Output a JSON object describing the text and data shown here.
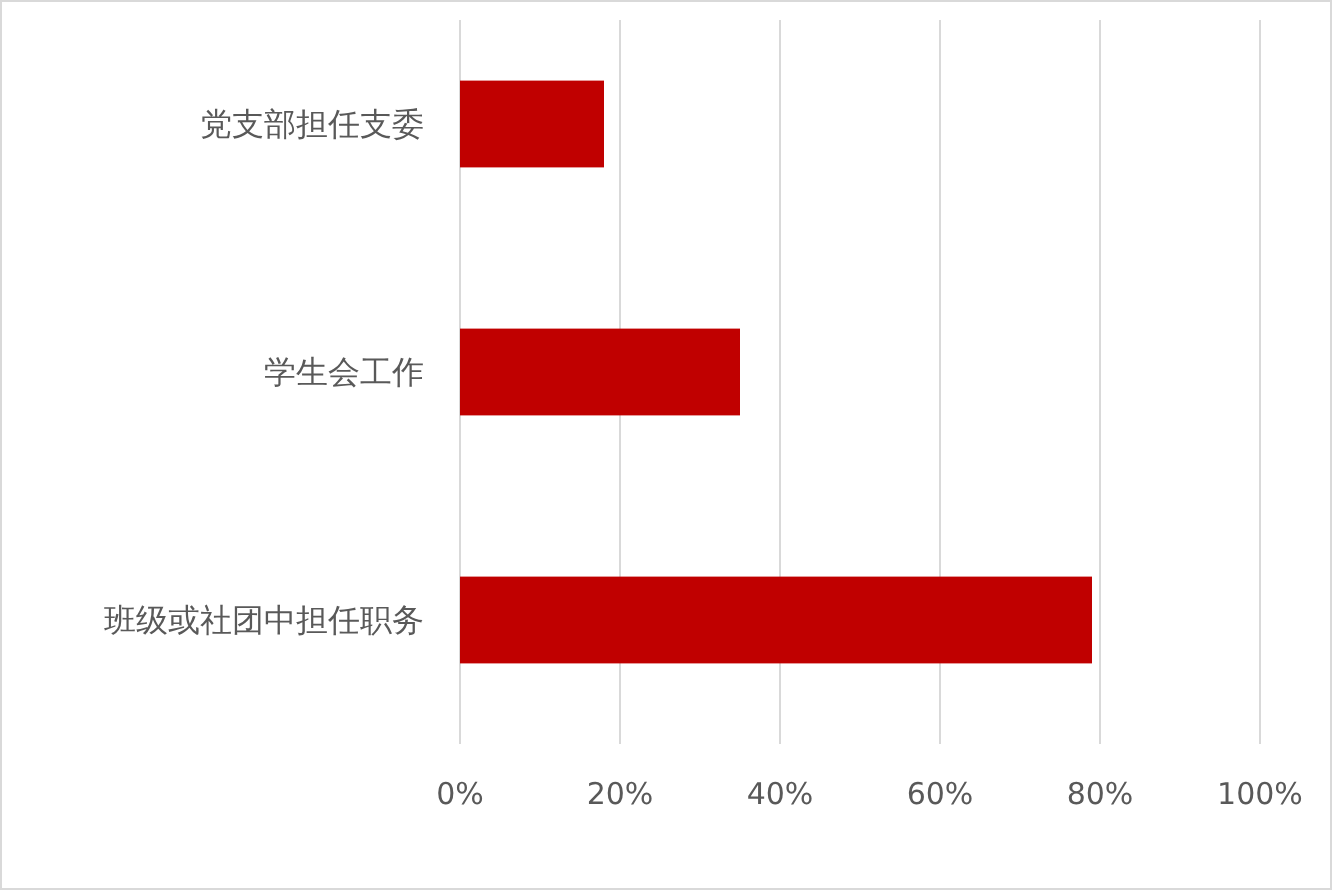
{
  "chart_data": {
    "type": "bar",
    "orientation": "horizontal",
    "categories": [
      "党支部担任支委",
      "学生会工作",
      "班级或社团中担任职务"
    ],
    "values": [
      18,
      35,
      79
    ],
    "color": "#c00000",
    "xlim": [
      0,
      100
    ],
    "xticks": [
      {
        "value": 0,
        "label": "0%"
      },
      {
        "value": 20,
        "label": "20%"
      },
      {
        "value": 40,
        "label": "40%"
      },
      {
        "value": 60,
        "label": "60%"
      },
      {
        "value": 80,
        "label": "80%"
      },
      {
        "value": 100,
        "label": "100%"
      }
    ],
    "grid": "x"
  }
}
